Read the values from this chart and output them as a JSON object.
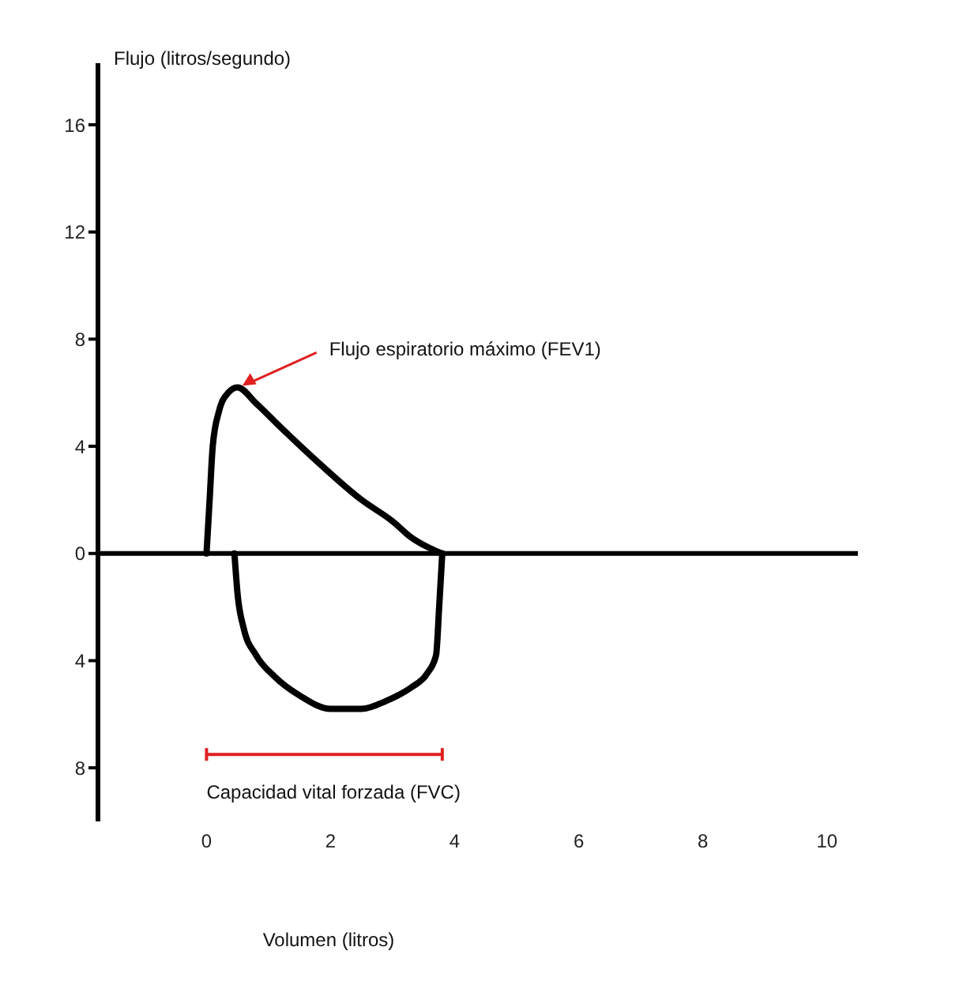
{
  "chart_data": {
    "type": "line",
    "xlabel": "Volumen (litros)",
    "ylabel": "Flujo (litros/segundo)",
    "series": [
      {
        "color": "#000000",
        "x": [
          0,
          0.05,
          0.1,
          0.2,
          0.35,
          0.5,
          0.8,
          1.2,
          1.8,
          2.5,
          3.0,
          3.3,
          3.6,
          3.8
        ],
        "values": [
          0,
          2,
          4,
          5.3,
          6,
          6.2,
          5.6,
          4.7,
          3.4,
          2.0,
          1.2,
          0.6,
          0.2,
          0
        ]
      },
      {
        "color": "#000000",
        "x": [
          0.45,
          0.5,
          0.6,
          0.8,
          1.1,
          1.5,
          2.0,
          2.5,
          2.9,
          3.3,
          3.55,
          3.7,
          3.75,
          3.8
        ],
        "values": [
          0,
          -1.5,
          -2.8,
          -3.8,
          -4.6,
          -5.3,
          -5.8,
          -5.8,
          -5.5,
          -5.0,
          -4.5,
          -3.8,
          -2,
          0
        ]
      }
    ],
    "xlim": [
      -1.75,
      10.5
    ],
    "xticks": [
      0,
      2,
      4,
      6,
      8,
      10
    ],
    "ylim": [
      -10,
      18.3
    ],
    "yticks": [
      {
        "value": -8,
        "label": "8"
      },
      {
        "value": -4,
        "label": "4"
      },
      0,
      4,
      8,
      12,
      16
    ],
    "line_style": "solid",
    "marker": "none",
    "annotations": [
      {
        "text": "Flujo espiratorio máximo (FEV1)",
        "x": 0.5,
        "y": 6.2
      },
      "Capacidad vital forzada (FVC)"
    ]
  }
}
